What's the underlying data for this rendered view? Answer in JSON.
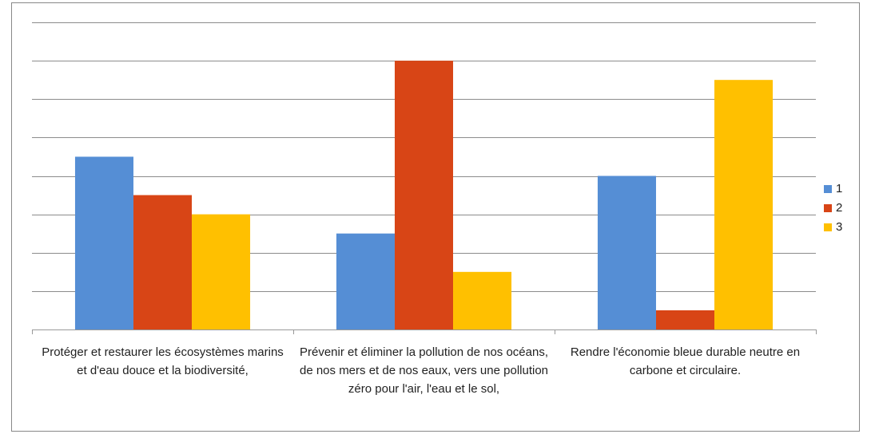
{
  "chart_data": {
    "type": "bar",
    "categories": [
      "Protéger et restaurer les écosystèmes marins et d'eau douce et la biodiversité,",
      "Prévenir et éliminer la pollution de nos océans, de nos mers et de nos eaux, vers une pollution zéro pour l'air, l'eau et le sol,",
      "Rendre l'économie bleue durable neutre en carbone et circulaire."
    ],
    "series": [
      {
        "name": "1",
        "color": "#558ed5",
        "values": [
          4.5,
          2.5,
          4
        ]
      },
      {
        "name": "2",
        "color": "#d84516",
        "values": [
          3.5,
          7,
          0.5
        ]
      },
      {
        "name": "3",
        "color": "#ffc000",
        "values": [
          3,
          1.5,
          6.5
        ]
      }
    ],
    "ylim": [
      0,
      8
    ],
    "yticks": [
      0,
      1,
      2,
      3,
      4,
      5,
      6,
      7,
      8
    ],
    "grid": true,
    "legend": "right"
  }
}
